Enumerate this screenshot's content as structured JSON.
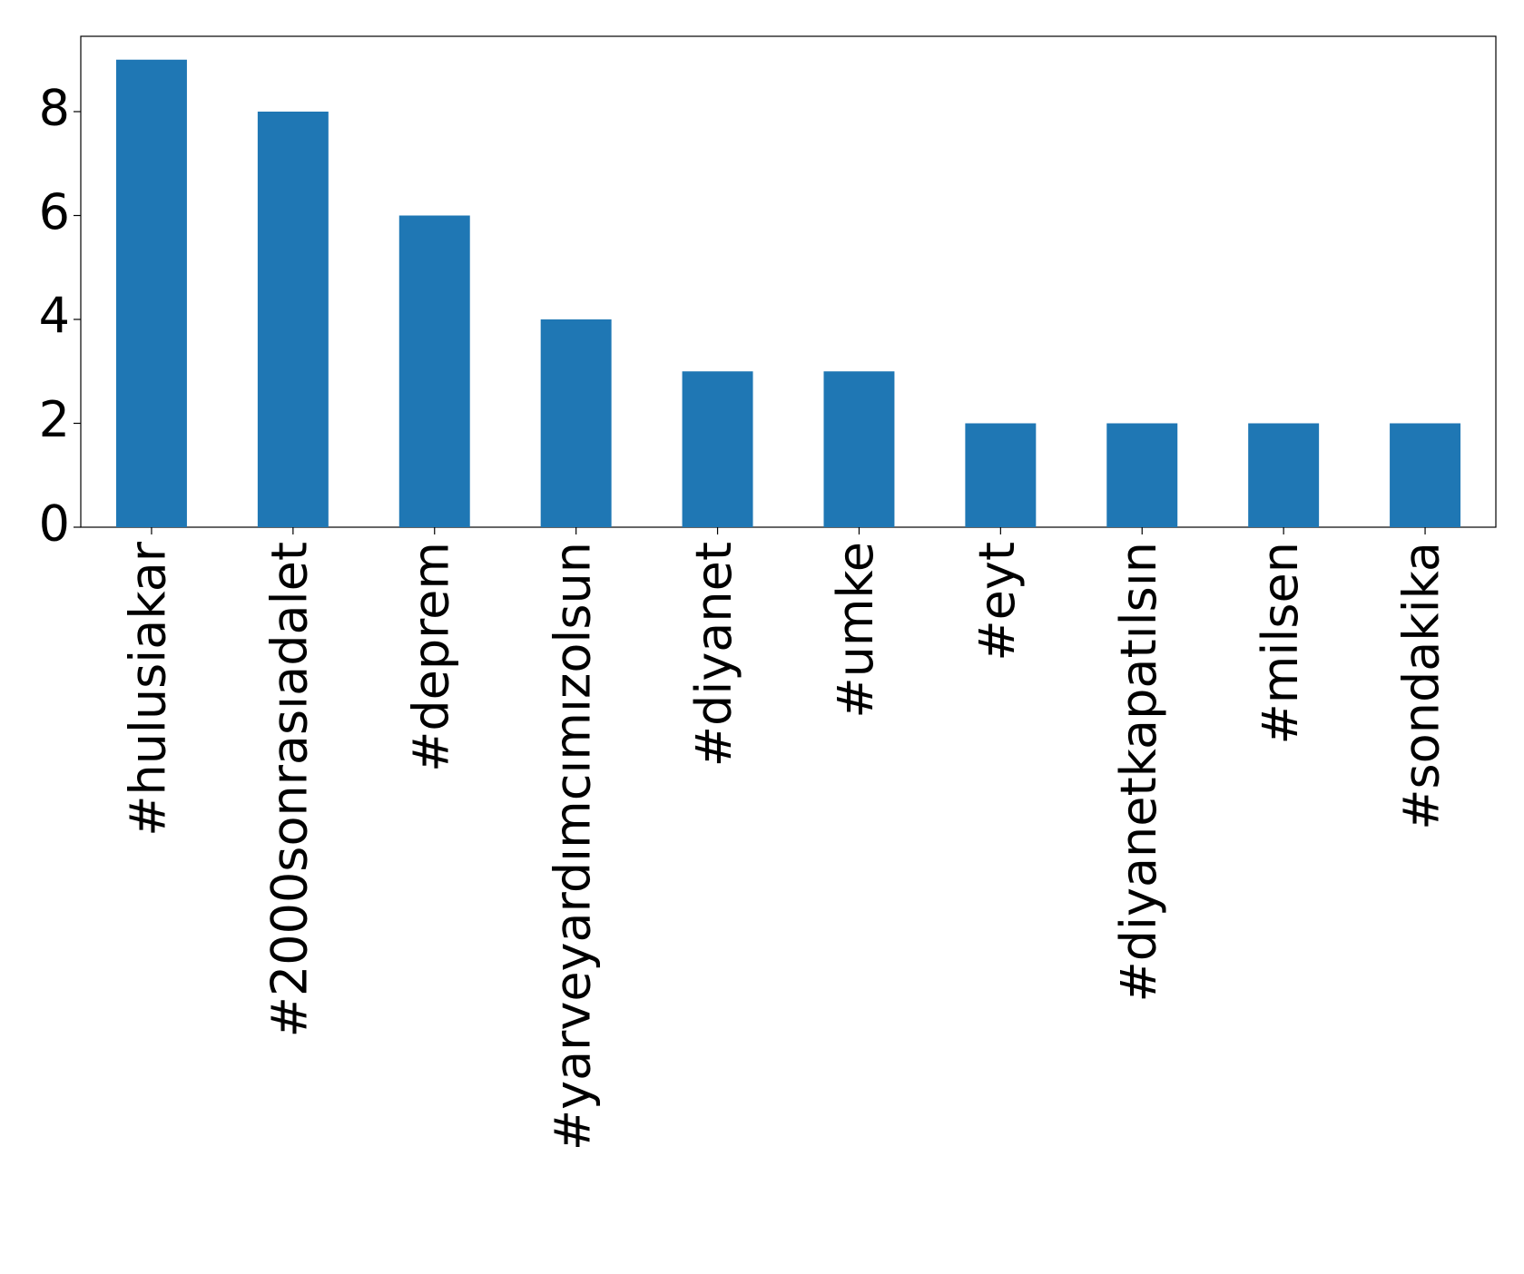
{
  "chart_data": {
    "type": "bar",
    "categories": [
      "#hulusiakar",
      "#2000sonrasıadalet",
      "#deprem",
      "#yarveyardımcımızolsun",
      "#diyanet",
      "#umke",
      "#eyt",
      "#diyanetkapatılsın",
      "#milsen",
      "#sondakika"
    ],
    "values": [
      9,
      8,
      6,
      4,
      3,
      3,
      2,
      2,
      2,
      2
    ],
    "color": "#1f77b4",
    "ylim": [
      0,
      9.45
    ],
    "yticks": [
      0,
      2,
      4,
      6,
      8
    ],
    "grid": false
  }
}
